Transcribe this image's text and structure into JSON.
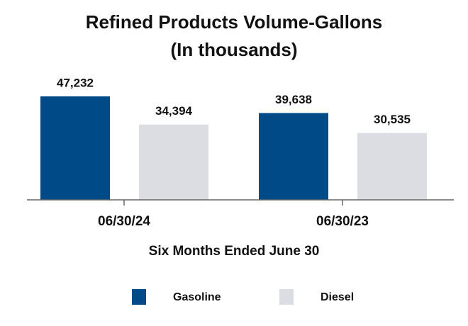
{
  "chart_data": {
    "type": "bar",
    "title": "Refined Products Volume-Gallons",
    "subtitle": "(In thousands)",
    "x_label": "Six Months Ended June 30",
    "categories": [
      "06/30/24",
      "06/30/23"
    ],
    "series": [
      {
        "name": "Gasoline",
        "color": "#004b87",
        "values": [
          47232,
          39638
        ],
        "value_labels": [
          "47,232",
          "39,638"
        ]
      },
      {
        "name": "Diesel",
        "color": "#dcdde2",
        "values": [
          34394,
          30535
        ],
        "value_labels": [
          "34,394",
          "30,535"
        ]
      }
    ]
  }
}
